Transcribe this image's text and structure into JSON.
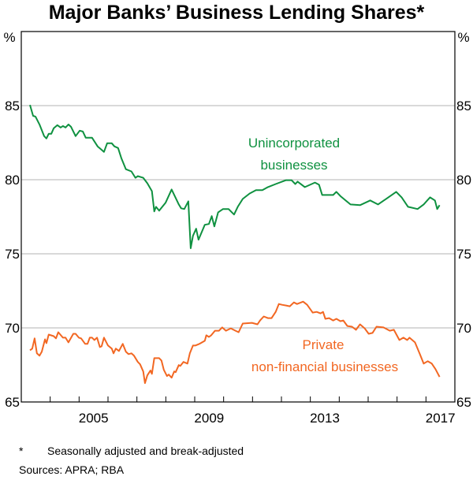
{
  "chart_data": {
    "type": "line",
    "title": "Major Banks’ Business Lending Shares*",
    "ylabel_left": "%",
    "ylabel_right": "%",
    "xlabel": "",
    "xlim": [
      2003.0,
      2018.0
    ],
    "ylim": [
      65,
      90
    ],
    "y_ticks": [
      65,
      70,
      75,
      80,
      85
    ],
    "x_tick_years": [
      2004,
      2005,
      2006,
      2007,
      2008,
      2009,
      2010,
      2011,
      2012,
      2013,
      2014,
      2015,
      2016,
      2017
    ],
    "x_labels": [
      {
        "year": 2005,
        "text": "2005"
      },
      {
        "year": 2009,
        "text": "2009"
      },
      {
        "year": 2013,
        "text": "2013"
      },
      {
        "year": 2017,
        "text": "2017"
      }
    ],
    "grid": true,
    "series": [
      {
        "name": "Unincorporated businesses",
        "label_lines": [
          "Unincorporated",
          "businesses"
        ],
        "color": "#0f9140",
        "points": [
          [
            2003.3,
            85.05
          ],
          [
            2003.41,
            84.31
          ],
          [
            2003.49,
            84.26
          ],
          [
            2003.63,
            83.73
          ],
          [
            2003.79,
            82.94
          ],
          [
            2003.87,
            82.78
          ],
          [
            2003.95,
            83.1
          ],
          [
            2004.04,
            83.1
          ],
          [
            2004.12,
            83.47
          ],
          [
            2004.25,
            83.68
          ],
          [
            2004.36,
            83.52
          ],
          [
            2004.44,
            83.62
          ],
          [
            2004.53,
            83.52
          ],
          [
            2004.63,
            83.73
          ],
          [
            2004.72,
            83.57
          ],
          [
            2004.88,
            82.94
          ],
          [
            2005.02,
            83.31
          ],
          [
            2005.13,
            83.25
          ],
          [
            2005.23,
            82.83
          ],
          [
            2005.45,
            82.83
          ],
          [
            2005.64,
            82.25
          ],
          [
            2005.86,
            81.88
          ],
          [
            2005.97,
            82.46
          ],
          [
            2006.13,
            82.46
          ],
          [
            2006.22,
            82.25
          ],
          [
            2006.35,
            82.14
          ],
          [
            2006.46,
            81.46
          ],
          [
            2006.62,
            80.71
          ],
          [
            2006.81,
            80.56
          ],
          [
            2006.95,
            80.13
          ],
          [
            2007.03,
            80.24
          ],
          [
            2007.22,
            80.13
          ],
          [
            2007.36,
            79.76
          ],
          [
            2007.52,
            79.23
          ],
          [
            2007.6,
            77.86
          ],
          [
            2007.66,
            78.17
          ],
          [
            2007.77,
            77.91
          ],
          [
            2007.99,
            78.44
          ],
          [
            2008.2,
            79.34
          ],
          [
            2008.45,
            78.33
          ],
          [
            2008.53,
            78.07
          ],
          [
            2008.64,
            78.02
          ],
          [
            2008.78,
            78.54
          ],
          [
            2008.86,
            75.37
          ],
          [
            2008.94,
            76.22
          ],
          [
            2009.05,
            76.69
          ],
          [
            2009.13,
            75.95
          ],
          [
            2009.35,
            76.96
          ],
          [
            2009.49,
            77.01
          ],
          [
            2009.59,
            77.54
          ],
          [
            2009.68,
            76.85
          ],
          [
            2009.81,
            77.8
          ],
          [
            2009.98,
            78.02
          ],
          [
            2010.17,
            78.02
          ],
          [
            2010.36,
            77.65
          ],
          [
            2010.49,
            78.17
          ],
          [
            2010.66,
            78.7
          ],
          [
            2010.9,
            79.07
          ],
          [
            2011.12,
            79.29
          ],
          [
            2011.34,
            79.29
          ],
          [
            2011.53,
            79.5
          ],
          [
            2011.8,
            79.71
          ],
          [
            2012.16,
            79.97
          ],
          [
            2012.35,
            79.97
          ],
          [
            2012.48,
            79.71
          ],
          [
            2012.56,
            79.87
          ],
          [
            2012.81,
            79.5
          ],
          [
            2013.16,
            79.81
          ],
          [
            2013.3,
            79.66
          ],
          [
            2013.41,
            78.97
          ],
          [
            2013.79,
            78.97
          ],
          [
            2013.9,
            79.18
          ],
          [
            2014.06,
            78.86
          ],
          [
            2014.39,
            78.33
          ],
          [
            2014.72,
            78.28
          ],
          [
            2015.07,
            78.6
          ],
          [
            2015.34,
            78.33
          ],
          [
            2015.62,
            78.7
          ],
          [
            2015.97,
            79.18
          ],
          [
            2016.16,
            78.81
          ],
          [
            2016.38,
            78.17
          ],
          [
            2016.71,
            78.02
          ],
          [
            2016.92,
            78.33
          ],
          [
            2017.14,
            78.81
          ],
          [
            2017.31,
            78.6
          ],
          [
            2017.39,
            78.02
          ],
          [
            2017.47,
            78.28
          ]
        ]
      },
      {
        "name": "Private non-financial businesses",
        "label_lines": [
          "Private",
          "non-financial businesses"
        ],
        "color": "#f26722",
        "points": [
          [
            2003.3,
            68.49
          ],
          [
            2003.38,
            68.6
          ],
          [
            2003.46,
            69.29
          ],
          [
            2003.54,
            68.28
          ],
          [
            2003.63,
            68.12
          ],
          [
            2003.71,
            68.39
          ],
          [
            2003.82,
            69.23
          ],
          [
            2003.87,
            68.97
          ],
          [
            2003.95,
            69.55
          ],
          [
            2004.12,
            69.44
          ],
          [
            2004.2,
            69.29
          ],
          [
            2004.28,
            69.71
          ],
          [
            2004.44,
            69.34
          ],
          [
            2004.53,
            69.34
          ],
          [
            2004.63,
            69.02
          ],
          [
            2004.8,
            69.6
          ],
          [
            2004.88,
            69.6
          ],
          [
            2004.99,
            69.34
          ],
          [
            2005.07,
            69.29
          ],
          [
            2005.21,
            68.92
          ],
          [
            2005.29,
            68.92
          ],
          [
            2005.37,
            69.34
          ],
          [
            2005.45,
            69.34
          ],
          [
            2005.53,
            69.18
          ],
          [
            2005.62,
            69.34
          ],
          [
            2005.72,
            68.7
          ],
          [
            2005.78,
            68.76
          ],
          [
            2005.86,
            69.34
          ],
          [
            2006.0,
            68.81
          ],
          [
            2006.13,
            68.6
          ],
          [
            2006.19,
            68.28
          ],
          [
            2006.27,
            68.6
          ],
          [
            2006.38,
            68.44
          ],
          [
            2006.51,
            68.92
          ],
          [
            2006.62,
            68.39
          ],
          [
            2006.71,
            68.23
          ],
          [
            2006.81,
            68.28
          ],
          [
            2006.9,
            68.12
          ],
          [
            2007.03,
            67.7
          ],
          [
            2007.11,
            67.54
          ],
          [
            2007.22,
            67.06
          ],
          [
            2007.28,
            66.27
          ],
          [
            2007.36,
            66.8
          ],
          [
            2007.47,
            67.12
          ],
          [
            2007.52,
            66.9
          ],
          [
            2007.6,
            67.96
          ],
          [
            2007.77,
            67.96
          ],
          [
            2007.85,
            67.8
          ],
          [
            2007.93,
            67.17
          ],
          [
            2008.04,
            66.75
          ],
          [
            2008.1,
            66.85
          ],
          [
            2008.2,
            66.64
          ],
          [
            2008.29,
            67.06
          ],
          [
            2008.34,
            67.01
          ],
          [
            2008.45,
            67.49
          ],
          [
            2008.5,
            67.43
          ],
          [
            2008.61,
            67.7
          ],
          [
            2008.75,
            67.59
          ],
          [
            2008.83,
            68.28
          ],
          [
            2008.94,
            68.81
          ],
          [
            2009.02,
            68.81
          ],
          [
            2009.16,
            68.92
          ],
          [
            2009.35,
            69.13
          ],
          [
            2009.4,
            69.5
          ],
          [
            2009.49,
            69.39
          ],
          [
            2009.57,
            69.5
          ],
          [
            2009.7,
            69.81
          ],
          [
            2009.84,
            69.81
          ],
          [
            2009.95,
            70.03
          ],
          [
            2010.08,
            69.81
          ],
          [
            2010.25,
            69.97
          ],
          [
            2010.41,
            69.81
          ],
          [
            2010.52,
            69.71
          ],
          [
            2010.66,
            70.29
          ],
          [
            2010.98,
            70.34
          ],
          [
            2011.17,
            70.24
          ],
          [
            2011.26,
            70.5
          ],
          [
            2011.39,
            70.77
          ],
          [
            2011.53,
            70.66
          ],
          [
            2011.66,
            70.66
          ],
          [
            2011.8,
            71.08
          ],
          [
            2011.91,
            71.61
          ],
          [
            2012.02,
            71.56
          ],
          [
            2012.16,
            71.51
          ],
          [
            2012.29,
            71.46
          ],
          [
            2012.43,
            71.72
          ],
          [
            2012.54,
            71.61
          ],
          [
            2012.75,
            71.77
          ],
          [
            2012.89,
            71.56
          ],
          [
            2013.08,
            71.03
          ],
          [
            2013.22,
            71.08
          ],
          [
            2013.35,
            70.98
          ],
          [
            2013.44,
            71.08
          ],
          [
            2013.52,
            70.61
          ],
          [
            2013.65,
            70.66
          ],
          [
            2013.79,
            70.5
          ],
          [
            2013.9,
            70.61
          ],
          [
            2014.04,
            70.45
          ],
          [
            2014.14,
            70.5
          ],
          [
            2014.28,
            70.13
          ],
          [
            2014.44,
            70.08
          ],
          [
            2014.58,
            69.87
          ],
          [
            2014.72,
            70.24
          ],
          [
            2014.88,
            69.97
          ],
          [
            2015.02,
            69.6
          ],
          [
            2015.15,
            69.66
          ],
          [
            2015.29,
            70.08
          ],
          [
            2015.53,
            70.03
          ],
          [
            2015.75,
            69.81
          ],
          [
            2015.89,
            69.87
          ],
          [
            2016.08,
            69.18
          ],
          [
            2016.22,
            69.34
          ],
          [
            2016.35,
            69.18
          ],
          [
            2016.43,
            69.34
          ],
          [
            2016.62,
            69.02
          ],
          [
            2016.79,
            68.23
          ],
          [
            2016.92,
            67.59
          ],
          [
            2017.06,
            67.75
          ],
          [
            2017.2,
            67.59
          ],
          [
            2017.33,
            67.22
          ],
          [
            2017.47,
            66.69
          ]
        ]
      }
    ],
    "footnote_marker": "*",
    "footnote": "Seasonally adjusted and break-adjusted",
    "sources": "Sources: APRA; RBA"
  }
}
